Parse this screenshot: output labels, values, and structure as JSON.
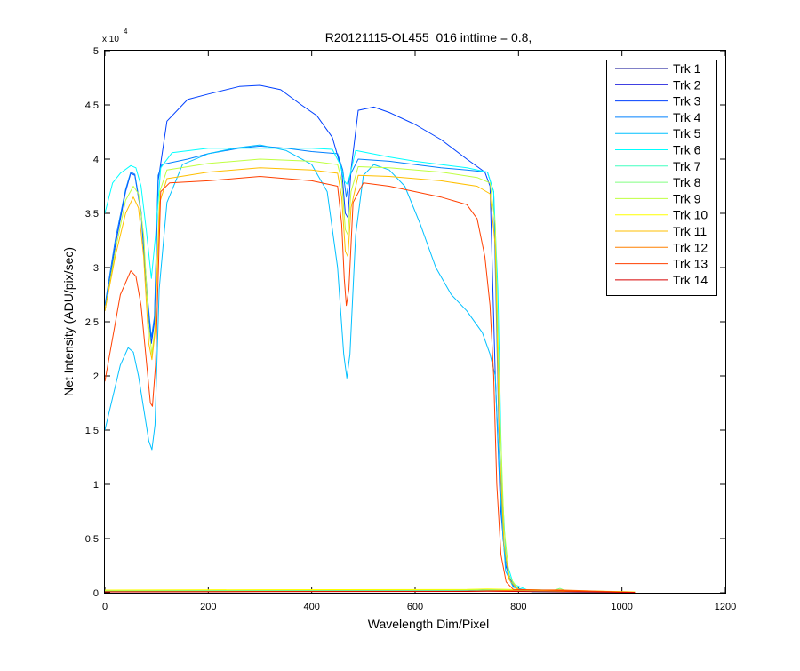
{
  "chart_data": {
    "type": "line",
    "title": "R20121115-OL455_016 inttime = 0.8,",
    "xlabel": "Wavelength Dim/Pixel",
    "ylabel": "Net Intensity (ADU/pix/sec)",
    "xlim": [
      0,
      1200
    ],
    "ylim": [
      0,
      50000
    ],
    "y_exponent_label": "x 10",
    "y_exponent_power": "4",
    "xticks": [
      0,
      200,
      400,
      600,
      800,
      1000,
      1200
    ],
    "xtick_labels": [
      "0",
      "200",
      "400",
      "600",
      "800",
      "1000",
      "1200"
    ],
    "yticks": [
      0,
      5000,
      10000,
      15000,
      20000,
      25000,
      30000,
      35000,
      40000,
      45000,
      50000
    ],
    "ytick_labels": [
      "0",
      "0.5",
      "1",
      "1.5",
      "2",
      "2.5",
      "3",
      "3.5",
      "4",
      "4.5",
      "5"
    ],
    "grid": false,
    "legend_position": "top-right",
    "series": [
      {
        "name": "Trk 1",
        "color": "#00008f",
        "points": [
          [
            0,
            100
          ],
          [
            300,
            130
          ],
          [
            700,
            150
          ],
          [
            730,
            200
          ],
          [
            1025,
            50
          ]
        ]
      },
      {
        "name": "Trk 2",
        "color": "#0000d8",
        "points": [
          [
            0,
            150
          ],
          [
            300,
            180
          ],
          [
            700,
            200
          ],
          [
            730,
            250
          ],
          [
            1025,
            60
          ]
        ]
      },
      {
        "name": "Trk 3",
        "color": "#0040ff",
        "points": [
          [
            0,
            26000
          ],
          [
            20,
            32000
          ],
          [
            40,
            37000
          ],
          [
            50,
            38700
          ],
          [
            58,
            38500
          ],
          [
            70,
            35000
          ],
          [
            82,
            27000
          ],
          [
            90,
            23000
          ],
          [
            96,
            25000
          ],
          [
            103,
            38000
          ],
          [
            120,
            43500
          ],
          [
            160,
            45500
          ],
          [
            200,
            46000
          ],
          [
            260,
            46700
          ],
          [
            300,
            46800
          ],
          [
            340,
            46400
          ],
          [
            380,
            45000
          ],
          [
            410,
            44000
          ],
          [
            440,
            42000
          ],
          [
            458,
            39000
          ],
          [
            465,
            35000
          ],
          [
            470,
            34600
          ],
          [
            476,
            39000
          ],
          [
            490,
            44500
          ],
          [
            520,
            44800
          ],
          [
            550,
            44300
          ],
          [
            600,
            43200
          ],
          [
            650,
            41800
          ],
          [
            700,
            40000
          ],
          [
            735,
            38800
          ],
          [
            745,
            37500
          ],
          [
            755,
            20000
          ],
          [
            765,
            8000
          ],
          [
            775,
            2500
          ],
          [
            790,
            600
          ],
          [
            810,
            200
          ],
          [
            830,
            80
          ],
          [
            1025,
            30
          ]
        ]
      },
      {
        "name": "Trk 4",
        "color": "#0080ff",
        "points": [
          [
            0,
            26500
          ],
          [
            20,
            32500
          ],
          [
            40,
            37200
          ],
          [
            50,
            38800
          ],
          [
            58,
            38600
          ],
          [
            70,
            35200
          ],
          [
            82,
            27500
          ],
          [
            90,
            23500
          ],
          [
            96,
            25500
          ],
          [
            103,
            38500
          ],
          [
            110,
            39500
          ],
          [
            160,
            40000
          ],
          [
            200,
            40500
          ],
          [
            260,
            41000
          ],
          [
            300,
            41200
          ],
          [
            350,
            41000
          ],
          [
            400,
            40700
          ],
          [
            450,
            40500
          ],
          [
            460,
            39000
          ],
          [
            467,
            36500
          ],
          [
            474,
            38500
          ],
          [
            490,
            40000
          ],
          [
            550,
            39800
          ],
          [
            600,
            39500
          ],
          [
            650,
            39200
          ],
          [
            700,
            39000
          ],
          [
            740,
            38800
          ],
          [
            752,
            37000
          ],
          [
            762,
            15000
          ],
          [
            770,
            5000
          ],
          [
            780,
            1500
          ],
          [
            800,
            300
          ],
          [
            830,
            80
          ],
          [
            1025,
            30
          ]
        ]
      },
      {
        "name": "Trk 5",
        "color": "#00c0ff",
        "points": [
          [
            0,
            15000
          ],
          [
            15,
            18000
          ],
          [
            30,
            21000
          ],
          [
            45,
            22600
          ],
          [
            55,
            22200
          ],
          [
            65,
            20000
          ],
          [
            75,
            17000
          ],
          [
            85,
            14000
          ],
          [
            91,
            13200
          ],
          [
            97,
            15500
          ],
          [
            105,
            28000
          ],
          [
            120,
            36000
          ],
          [
            150,
            39500
          ],
          [
            200,
            40500
          ],
          [
            250,
            41000
          ],
          [
            300,
            41300
          ],
          [
            350,
            40800
          ],
          [
            400,
            39500
          ],
          [
            430,
            37000
          ],
          [
            450,
            30000
          ],
          [
            462,
            22000
          ],
          [
            468,
            19800
          ],
          [
            474,
            22000
          ],
          [
            485,
            33000
          ],
          [
            500,
            38500
          ],
          [
            520,
            39500
          ],
          [
            550,
            39000
          ],
          [
            580,
            37500
          ],
          [
            610,
            34000
          ],
          [
            640,
            30000
          ],
          [
            670,
            27500
          ],
          [
            700,
            26000
          ],
          [
            730,
            24000
          ],
          [
            745,
            22000
          ],
          [
            755,
            20000
          ],
          [
            765,
            9000
          ],
          [
            775,
            2000
          ],
          [
            790,
            500
          ],
          [
            830,
            100
          ],
          [
            1025,
            30
          ]
        ]
      },
      {
        "name": "Trk 6",
        "color": "#00ffff",
        "points": [
          [
            0,
            35000
          ],
          [
            15,
            37800
          ],
          [
            30,
            38700
          ],
          [
            50,
            39400
          ],
          [
            60,
            39200
          ],
          [
            70,
            37500
          ],
          [
            80,
            33500
          ],
          [
            90,
            29000
          ],
          [
            98,
            33000
          ],
          [
            108,
            39200
          ],
          [
            130,
            40600
          ],
          [
            200,
            41000
          ],
          [
            300,
            41000
          ],
          [
            400,
            41000
          ],
          [
            440,
            40900
          ],
          [
            455,
            39500
          ],
          [
            463,
            38000
          ],
          [
            468,
            37700
          ],
          [
            474,
            38500
          ],
          [
            485,
            40800
          ],
          [
            550,
            40200
          ],
          [
            600,
            39800
          ],
          [
            650,
            39500
          ],
          [
            700,
            39200
          ],
          [
            740,
            38800
          ],
          [
            752,
            37000
          ],
          [
            760,
            28000
          ],
          [
            768,
            10000
          ],
          [
            776,
            3000
          ],
          [
            790,
            800
          ],
          [
            820,
            200
          ],
          [
            1025,
            40
          ]
        ]
      },
      {
        "name": "Trk 7",
        "color": "#40ffbf",
        "points": [
          [
            0,
            150
          ],
          [
            300,
            170
          ],
          [
            700,
            190
          ],
          [
            740,
            220
          ],
          [
            1025,
            60
          ]
        ]
      },
      {
        "name": "Trk 8",
        "color": "#80ff80",
        "points": [
          [
            0,
            200
          ],
          [
            300,
            230
          ],
          [
            700,
            260
          ],
          [
            740,
            300
          ],
          [
            870,
            250
          ],
          [
            880,
            400
          ],
          [
            890,
            200
          ],
          [
            1025,
            70
          ]
        ]
      },
      {
        "name": "Trk 9",
        "color": "#bfff40",
        "points": [
          [
            0,
            26000
          ],
          [
            20,
            31500
          ],
          [
            40,
            36200
          ],
          [
            55,
            37500
          ],
          [
            65,
            36800
          ],
          [
            75,
            33000
          ],
          [
            85,
            24500
          ],
          [
            91,
            22000
          ],
          [
            97,
            24500
          ],
          [
            106,
            37000
          ],
          [
            120,
            39000
          ],
          [
            200,
            39600
          ],
          [
            300,
            40000
          ],
          [
            400,
            39800
          ],
          [
            450,
            39500
          ],
          [
            458,
            38000
          ],
          [
            465,
            33500
          ],
          [
            470,
            33000
          ],
          [
            476,
            37000
          ],
          [
            490,
            39300
          ],
          [
            550,
            39200
          ],
          [
            650,
            38800
          ],
          [
            720,
            38300
          ],
          [
            745,
            37800
          ],
          [
            755,
            34000
          ],
          [
            763,
            18000
          ],
          [
            772,
            6000
          ],
          [
            782,
            1500
          ],
          [
            800,
            300
          ],
          [
            1025,
            40
          ]
        ]
      },
      {
        "name": "Trk 10",
        "color": "#ffff00",
        "points": [
          [
            0,
            250
          ],
          [
            300,
            280
          ],
          [
            700,
            300
          ],
          [
            740,
            350
          ],
          [
            1025,
            80
          ]
        ]
      },
      {
        "name": "Trk 11",
        "color": "#ffbf00",
        "points": [
          [
            0,
            26000
          ],
          [
            20,
            31000
          ],
          [
            40,
            35000
          ],
          [
            55,
            36500
          ],
          [
            65,
            35500
          ],
          [
            75,
            31000
          ],
          [
            85,
            23000
          ],
          [
            91,
            21500
          ],
          [
            97,
            24000
          ],
          [
            106,
            36000
          ],
          [
            120,
            38200
          ],
          [
            200,
            38800
          ],
          [
            300,
            39200
          ],
          [
            400,
            39000
          ],
          [
            450,
            38700
          ],
          [
            458,
            36500
          ],
          [
            465,
            31500
          ],
          [
            470,
            31000
          ],
          [
            476,
            35500
          ],
          [
            490,
            38500
          ],
          [
            550,
            38400
          ],
          [
            650,
            38000
          ],
          [
            720,
            37500
          ],
          [
            745,
            36800
          ],
          [
            755,
            32000
          ],
          [
            763,
            14000
          ],
          [
            772,
            4500
          ],
          [
            782,
            1200
          ],
          [
            800,
            250
          ],
          [
            1025,
            40
          ]
        ]
      },
      {
        "name": "Trk 12",
        "color": "#ff8000",
        "points": [
          [
            0,
            100
          ],
          [
            300,
            120
          ],
          [
            700,
            140
          ],
          [
            740,
            180
          ],
          [
            880,
            260
          ],
          [
            1025,
            40
          ]
        ]
      },
      {
        "name": "Trk 13",
        "color": "#ff4000",
        "points": [
          [
            0,
            19500
          ],
          [
            15,
            23500
          ],
          [
            30,
            27500
          ],
          [
            50,
            29700
          ],
          [
            60,
            29200
          ],
          [
            70,
            26500
          ],
          [
            80,
            21500
          ],
          [
            88,
            17500
          ],
          [
            92,
            17200
          ],
          [
            98,
            21000
          ],
          [
            108,
            37000
          ],
          [
            125,
            37800
          ],
          [
            200,
            38000
          ],
          [
            300,
            38400
          ],
          [
            400,
            38000
          ],
          [
            450,
            37500
          ],
          [
            458,
            34000
          ],
          [
            463,
            29000
          ],
          [
            467,
            26500
          ],
          [
            472,
            28000
          ],
          [
            480,
            36000
          ],
          [
            500,
            37800
          ],
          [
            550,
            37500
          ],
          [
            600,
            37000
          ],
          [
            650,
            36500
          ],
          [
            700,
            35800
          ],
          [
            720,
            34500
          ],
          [
            735,
            31000
          ],
          [
            745,
            26500
          ],
          [
            752,
            20000
          ],
          [
            758,
            10000
          ],
          [
            766,
            3500
          ],
          [
            776,
            1000
          ],
          [
            790,
            300
          ],
          [
            1025,
            40
          ]
        ]
      },
      {
        "name": "Trk 14",
        "color": "#d80000",
        "points": [
          [
            0,
            80
          ],
          [
            300,
            100
          ],
          [
            700,
            120
          ],
          [
            740,
            150
          ],
          [
            1025,
            30
          ]
        ]
      }
    ]
  }
}
